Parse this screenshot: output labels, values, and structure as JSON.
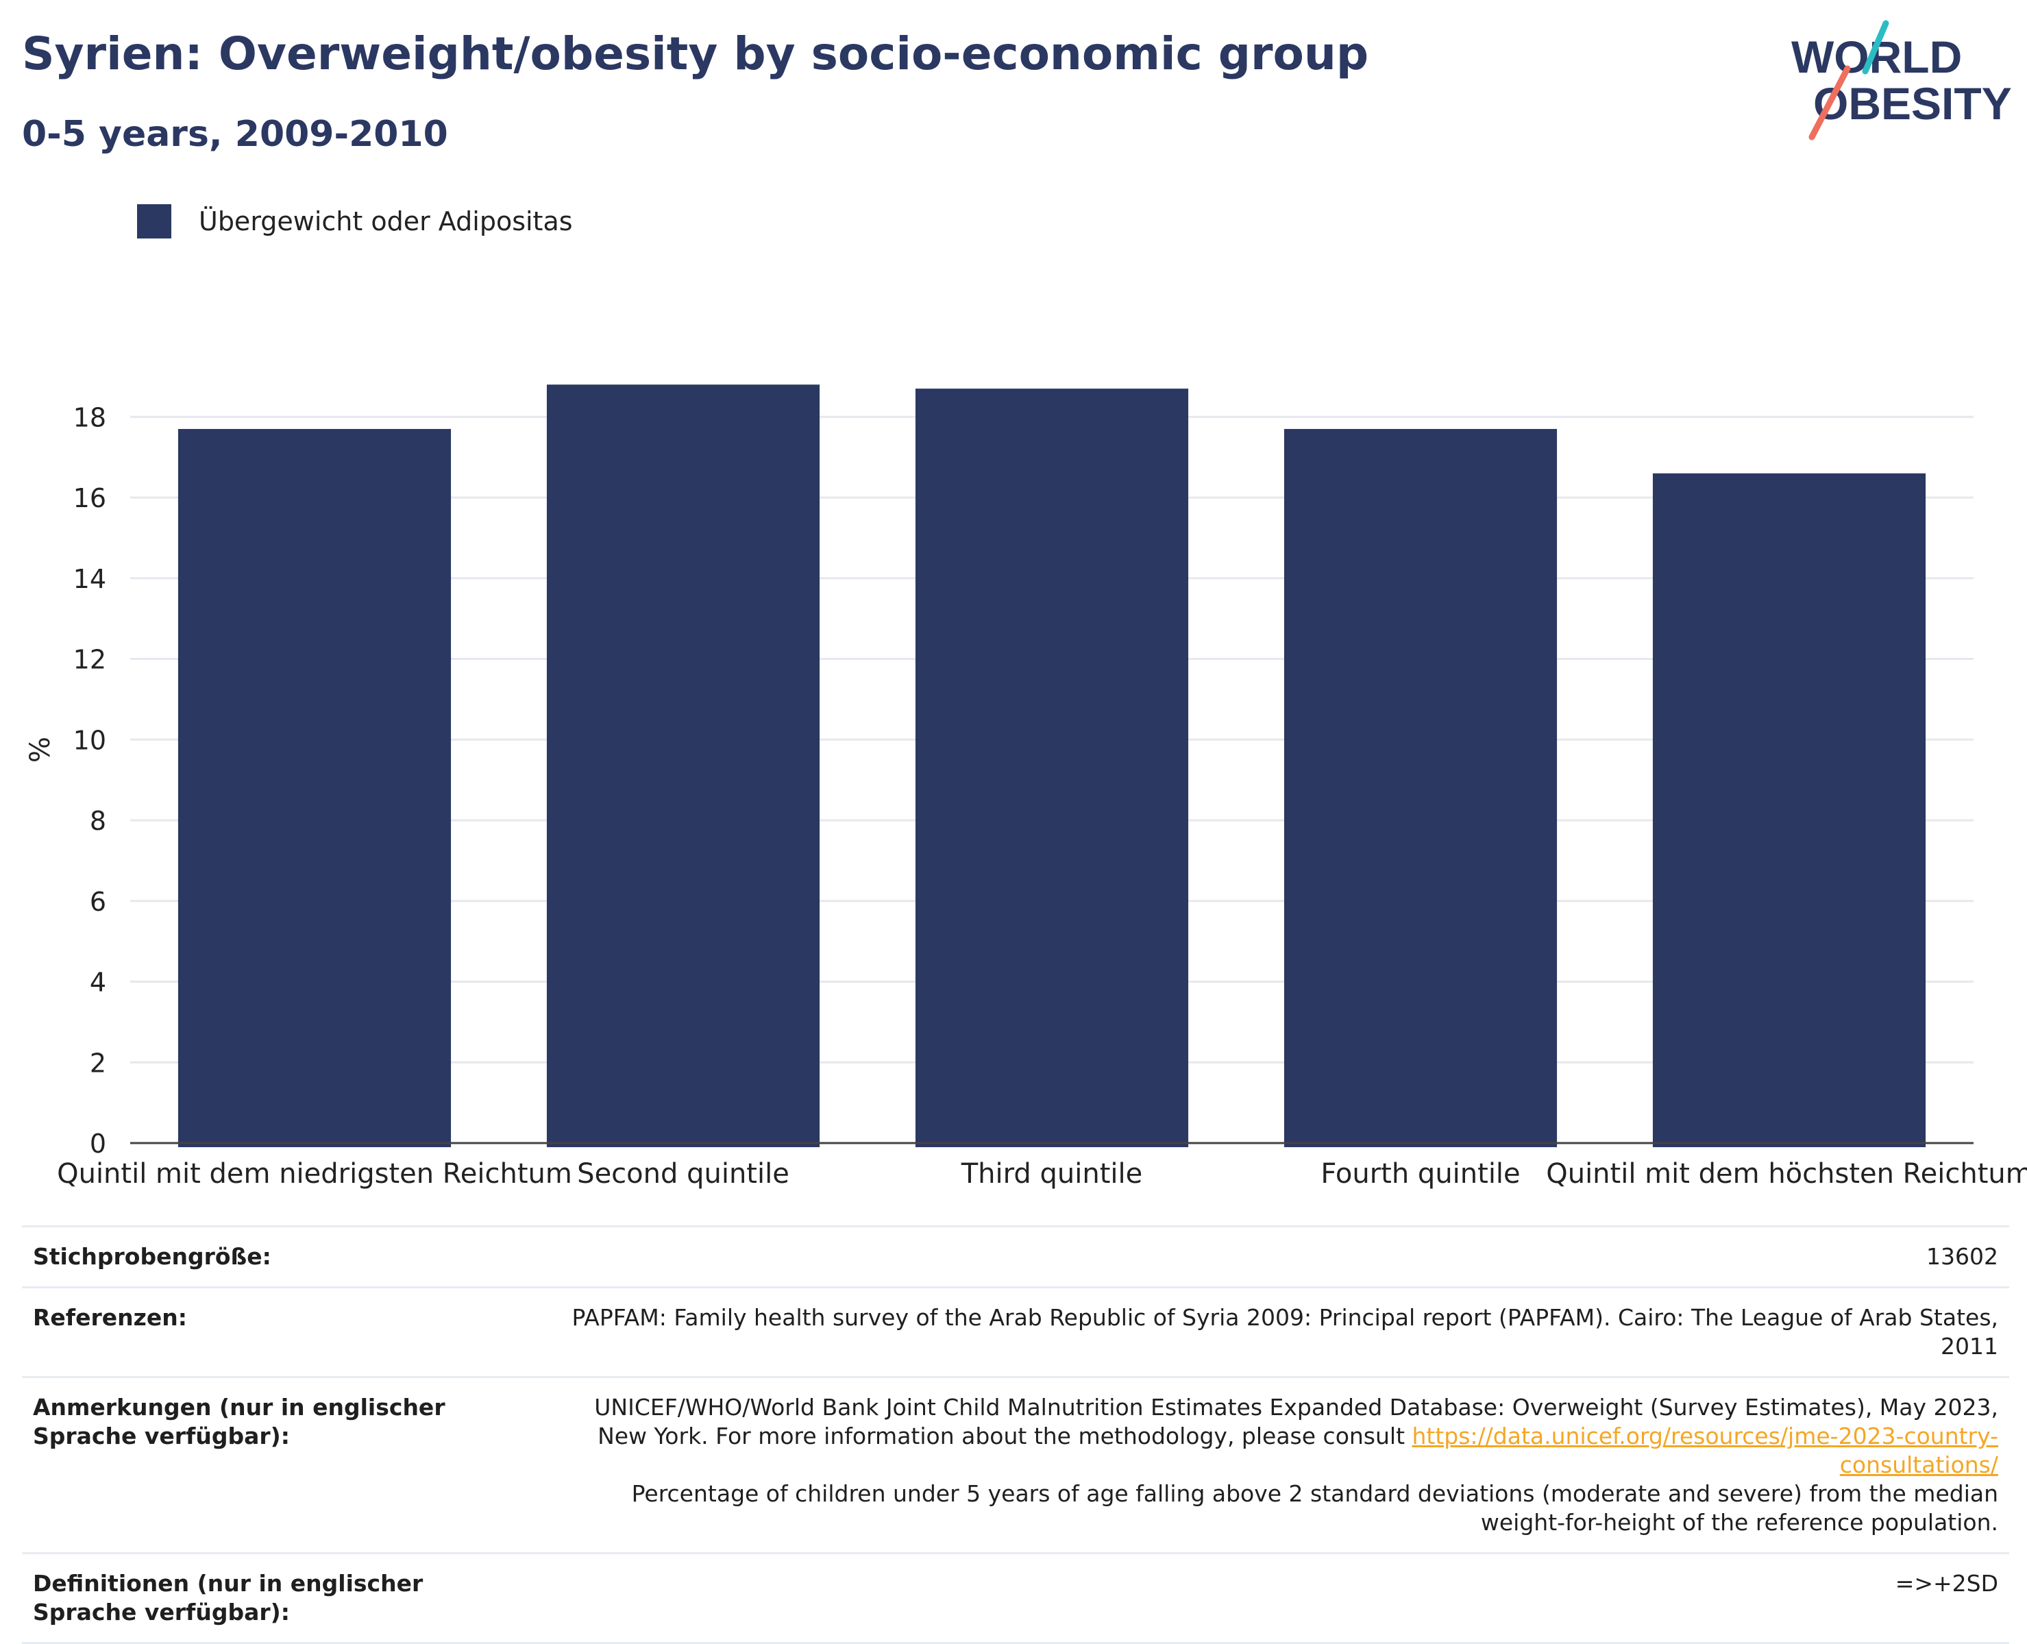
{
  "title": "Syrien: Overweight/obesity by socio-economic group",
  "subtitle": "0-5 years, 2009-2010",
  "logo": {
    "line1": "WORLD",
    "line2": "OBESITY",
    "accent_teal": "#2bbcc4",
    "accent_coral": "#ef6f5e"
  },
  "legend": {
    "label": "Übergewicht oder Adipositas",
    "color": "#2b3862"
  },
  "chart_data": {
    "type": "bar",
    "categories": [
      "Quintil mit dem niedrigsten Reichtum",
      "Second quintile",
      "Third quintile",
      "Fourth quintile",
      "Quintil mit dem höchsten Reichtum"
    ],
    "series": [
      {
        "name": "Übergewicht oder Adipositas",
        "values": [
          17.7,
          18.8,
          18.7,
          17.7,
          16.6
        ],
        "color": "#2b3862"
      }
    ],
    "ylabel": "%",
    "xlabel": "",
    "ylim": [
      0,
      19.5
    ],
    "yticks": [
      0,
      2,
      4,
      6,
      8,
      10,
      12,
      14,
      16,
      18
    ],
    "grid": true,
    "legend_position": "top-left"
  },
  "info": {
    "sample_label": "Stichprobengröße:",
    "sample_value": "13602",
    "refs_label": "Referenzen:",
    "refs_value": "PAPFAM: Family health survey of the Arab Republic of Syria 2009: Principal report (PAPFAM). Cairo: The League of Arab States, 2011",
    "notes_label": "Anmerkungen (nur in englischer Sprache verfügbar):",
    "notes_text1": "UNICEF/WHO/World Bank Joint Child Malnutrition Estimates Expanded Database: Overweight (Survey Estimates), May 2023, New York. For more information about the methodology, please consult ",
    "notes_link": "https://data.unicef.org/resources/jme-2023-country-consultations/",
    "notes_text2": "Percentage of children under 5 years of age falling above 2 standard deviations (moderate and severe) from the median weight-for-height of the reference population.",
    "defs_label": "Definitionen (nur in englischer Sprache verfügbar):",
    "defs_value": "=>+2SD"
  }
}
